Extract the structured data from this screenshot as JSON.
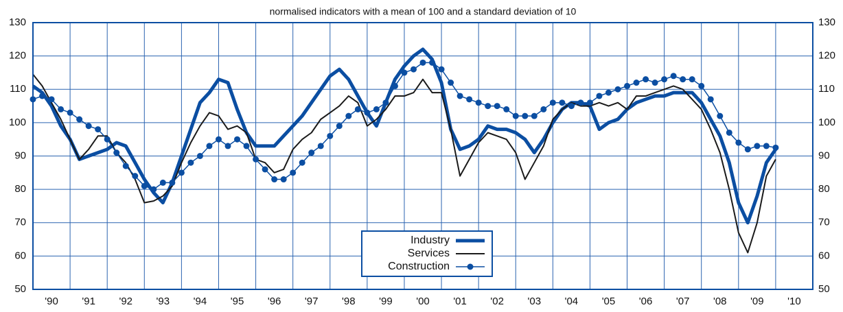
{
  "chart_data": {
    "type": "line",
    "title": "normalised indicators with a mean of 100 and a standard deviation of 10",
    "x": [
      1990,
      1990.25,
      1990.5,
      1990.75,
      1991,
      1991.25,
      1991.5,
      1991.75,
      1992,
      1992.25,
      1992.5,
      1992.75,
      1993,
      1993.25,
      1993.5,
      1993.75,
      1994,
      1994.25,
      1994.5,
      1994.75,
      1995,
      1995.25,
      1995.5,
      1995.75,
      1996,
      1996.25,
      1996.5,
      1996.75,
      1997,
      1997.25,
      1997.5,
      1997.75,
      1998,
      1998.25,
      1998.5,
      1998.75,
      1999,
      1999.25,
      1999.5,
      1999.75,
      2000,
      2000.25,
      2000.5,
      2000.75,
      2001,
      2001.25,
      2001.5,
      2001.75,
      2002,
      2002.25,
      2002.5,
      2002.75,
      2003,
      2003.25,
      2003.5,
      2003.75,
      2004,
      2004.25,
      2004.5,
      2004.75,
      2005,
      2005.25,
      2005.5,
      2005.75,
      2006,
      2006.25,
      2006.5,
      2006.75,
      2007,
      2007.25,
      2007.5,
      2007.75,
      2008,
      2008.25,
      2008.5,
      2008.75,
      2009,
      2009.25,
      2009.5,
      2009.75,
      2010
    ],
    "series": [
      {
        "name": "Industry",
        "color": "#0b4ea2",
        "width": 5,
        "markers": false,
        "values": [
          111,
          109,
          105,
          99,
          95,
          89,
          90,
          91,
          92,
          94,
          93,
          88,
          83,
          79,
          76,
          82,
          90,
          98,
          106,
          109,
          113,
          112,
          104,
          97,
          93,
          93,
          93,
          96,
          99,
          102,
          106,
          110,
          114,
          116,
          113,
          108,
          103,
          99,
          106,
          113,
          117,
          120,
          122,
          119,
          112,
          98,
          92,
          93,
          95,
          99,
          98,
          98,
          97,
          95,
          91,
          95,
          100,
          104,
          106,
          106,
          105,
          98,
          100,
          101,
          104,
          106,
          107,
          108,
          108,
          109,
          109,
          109,
          106,
          101,
          96,
          88,
          76,
          70,
          78,
          88,
          92
        ]
      },
      {
        "name": "Services",
        "color": "#1a1a1a",
        "width": 2,
        "markers": false,
        "values": [
          114.5,
          111,
          106,
          101,
          95,
          89,
          92,
          96,
          96,
          91,
          88,
          83,
          76,
          76.5,
          78,
          81,
          88,
          94,
          99,
          103,
          102,
          98,
          99,
          97,
          89,
          88,
          85,
          86,
          92,
          95,
          97,
          101,
          103,
          105,
          108,
          106,
          99,
          101,
          104,
          108,
          108,
          109,
          113,
          109,
          109,
          98,
          84,
          89,
          94,
          97,
          96,
          95,
          91,
          83,
          88,
          93,
          101,
          104,
          106,
          105,
          105,
          106,
          105,
          106,
          104,
          108,
          108,
          109,
          110,
          111,
          110,
          107,
          104,
          98,
          91,
          80,
          67,
          61,
          70,
          84,
          89
        ]
      },
      {
        "name": "Construction",
        "color": "#0b4ea2",
        "width": 1.5,
        "markers": true,
        "values": [
          107,
          108,
          107,
          104,
          103,
          101,
          99,
          98,
          95,
          91,
          87,
          84,
          81,
          80,
          82,
          82,
          85,
          88,
          90,
          93,
          95,
          93,
          95,
          93,
          89,
          86,
          83,
          83,
          85,
          88,
          91,
          93,
          96,
          99,
          102,
          104,
          103,
          104,
          106,
          111,
          115,
          116,
          118,
          118,
          116,
          112,
          108,
          107,
          106,
          105,
          105,
          104,
          102,
          102,
          102,
          104,
          106,
          106,
          105,
          106,
          106,
          108,
          109,
          110,
          111,
          112,
          113,
          112,
          113,
          114,
          113,
          113,
          111,
          107,
          102,
          97,
          94,
          92,
          93,
          93,
          92.5
        ]
      }
    ],
    "xlim": [
      1990,
      2011
    ],
    "xticks": [
      {
        "value": 1990,
        "label": "'90"
      },
      {
        "value": 1991,
        "label": "'91"
      },
      {
        "value": 1992,
        "label": "'92"
      },
      {
        "value": 1993,
        "label": "'93"
      },
      {
        "value": 1994,
        "label": "'94"
      },
      {
        "value": 1995,
        "label": "'95"
      },
      {
        "value": 1996,
        "label": "'96"
      },
      {
        "value": 1997,
        "label": "'97"
      },
      {
        "value": 1998,
        "label": "'98"
      },
      {
        "value": 1999,
        "label": "'99"
      },
      {
        "value": 2000,
        "label": "'00"
      },
      {
        "value": 2001,
        "label": "'01"
      },
      {
        "value": 2002,
        "label": "'02"
      },
      {
        "value": 2003,
        "label": "'03"
      },
      {
        "value": 2004,
        "label": "'04"
      },
      {
        "value": 2005,
        "label": "'05"
      },
      {
        "value": 2006,
        "label": "'06"
      },
      {
        "value": 2007,
        "label": "'07"
      },
      {
        "value": 2008,
        "label": "'08"
      },
      {
        "value": 2009,
        "label": "'09"
      },
      {
        "value": 2010,
        "label": "'10"
      }
    ],
    "ylim": [
      50,
      130
    ],
    "yticks": [
      50,
      60,
      70,
      80,
      90,
      100,
      110,
      120,
      130
    ],
    "grid": true
  }
}
